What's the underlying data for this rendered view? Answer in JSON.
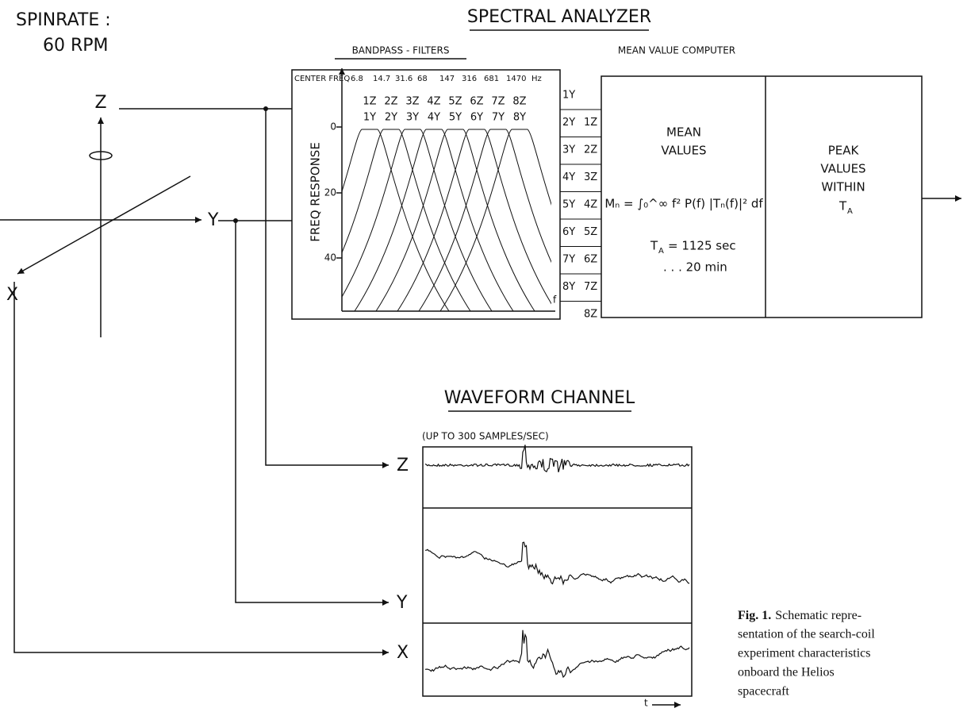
{
  "spinrate": {
    "label": "SPINRATE :",
    "value": "60 RPM"
  },
  "analyzer": {
    "title": "SPECTRAL ANALYZER",
    "filters_title": "BANDPASS - FILTERS",
    "computer_title": "MEAN VALUE COMPUTER",
    "center_freq_label": "CENTER FREQ",
    "center_freqs": [
      "6.8",
      "14.7",
      "31.6",
      "68",
      "147",
      "316",
      "681",
      "1470"
    ],
    "freq_unit": "Hz",
    "z_channels": [
      "1Z",
      "2Z",
      "3Z",
      "4Z",
      "5Z",
      "6Z",
      "7Z",
      "8Z"
    ],
    "y_channels": [
      "1Y",
      "2Y",
      "3Y",
      "4Y",
      "5Y",
      "6Y",
      "7Y",
      "8Y"
    ],
    "axis_label": "FREQ RESPONSE",
    "axis_ticks": [
      "0",
      "20",
      "40"
    ],
    "f_label": "f",
    "outputs": [
      [
        "1Y",
        ""
      ],
      [
        "2Y",
        "1Z"
      ],
      [
        "3Y",
        "2Z"
      ],
      [
        "4Y",
        "3Z"
      ],
      [
        "5Y",
        "4Z"
      ],
      [
        "6Y",
        "5Z"
      ],
      [
        "7Y",
        "6Z"
      ],
      [
        "8Y",
        "7Z"
      ],
      [
        "",
        "8Z"
      ]
    ],
    "mean": {
      "lines": [
        "MEAN",
        "VALUES"
      ],
      "formula": "Mₙ = ∫₀^∞ f² P(f) |Tₙ(f)|² df",
      "ta": "T",
      "ta_sub": "A",
      "ta_value": "= 1125 sec",
      "ta_alt": ". . . 20 min"
    },
    "peak": {
      "lines": [
        "PEAK",
        "VALUES",
        "WITHIN"
      ],
      "ta": "T",
      "ta_sub": "A"
    }
  },
  "axes": {
    "z": "Z",
    "y": "Y",
    "x": "X"
  },
  "waveform": {
    "title": "WAVEFORM CHANNEL",
    "subtitle": "(UP TO 300 SAMPLES/SEC)",
    "channels": [
      "Z",
      "Y",
      "X"
    ],
    "t_label": "t"
  },
  "caption": {
    "label": "Fig. 1.",
    "lines": [
      "Schematic repre-",
      "sentation of the search-coil",
      "experiment characteristics",
      "onboard the Helios",
      "spacecraft"
    ]
  }
}
